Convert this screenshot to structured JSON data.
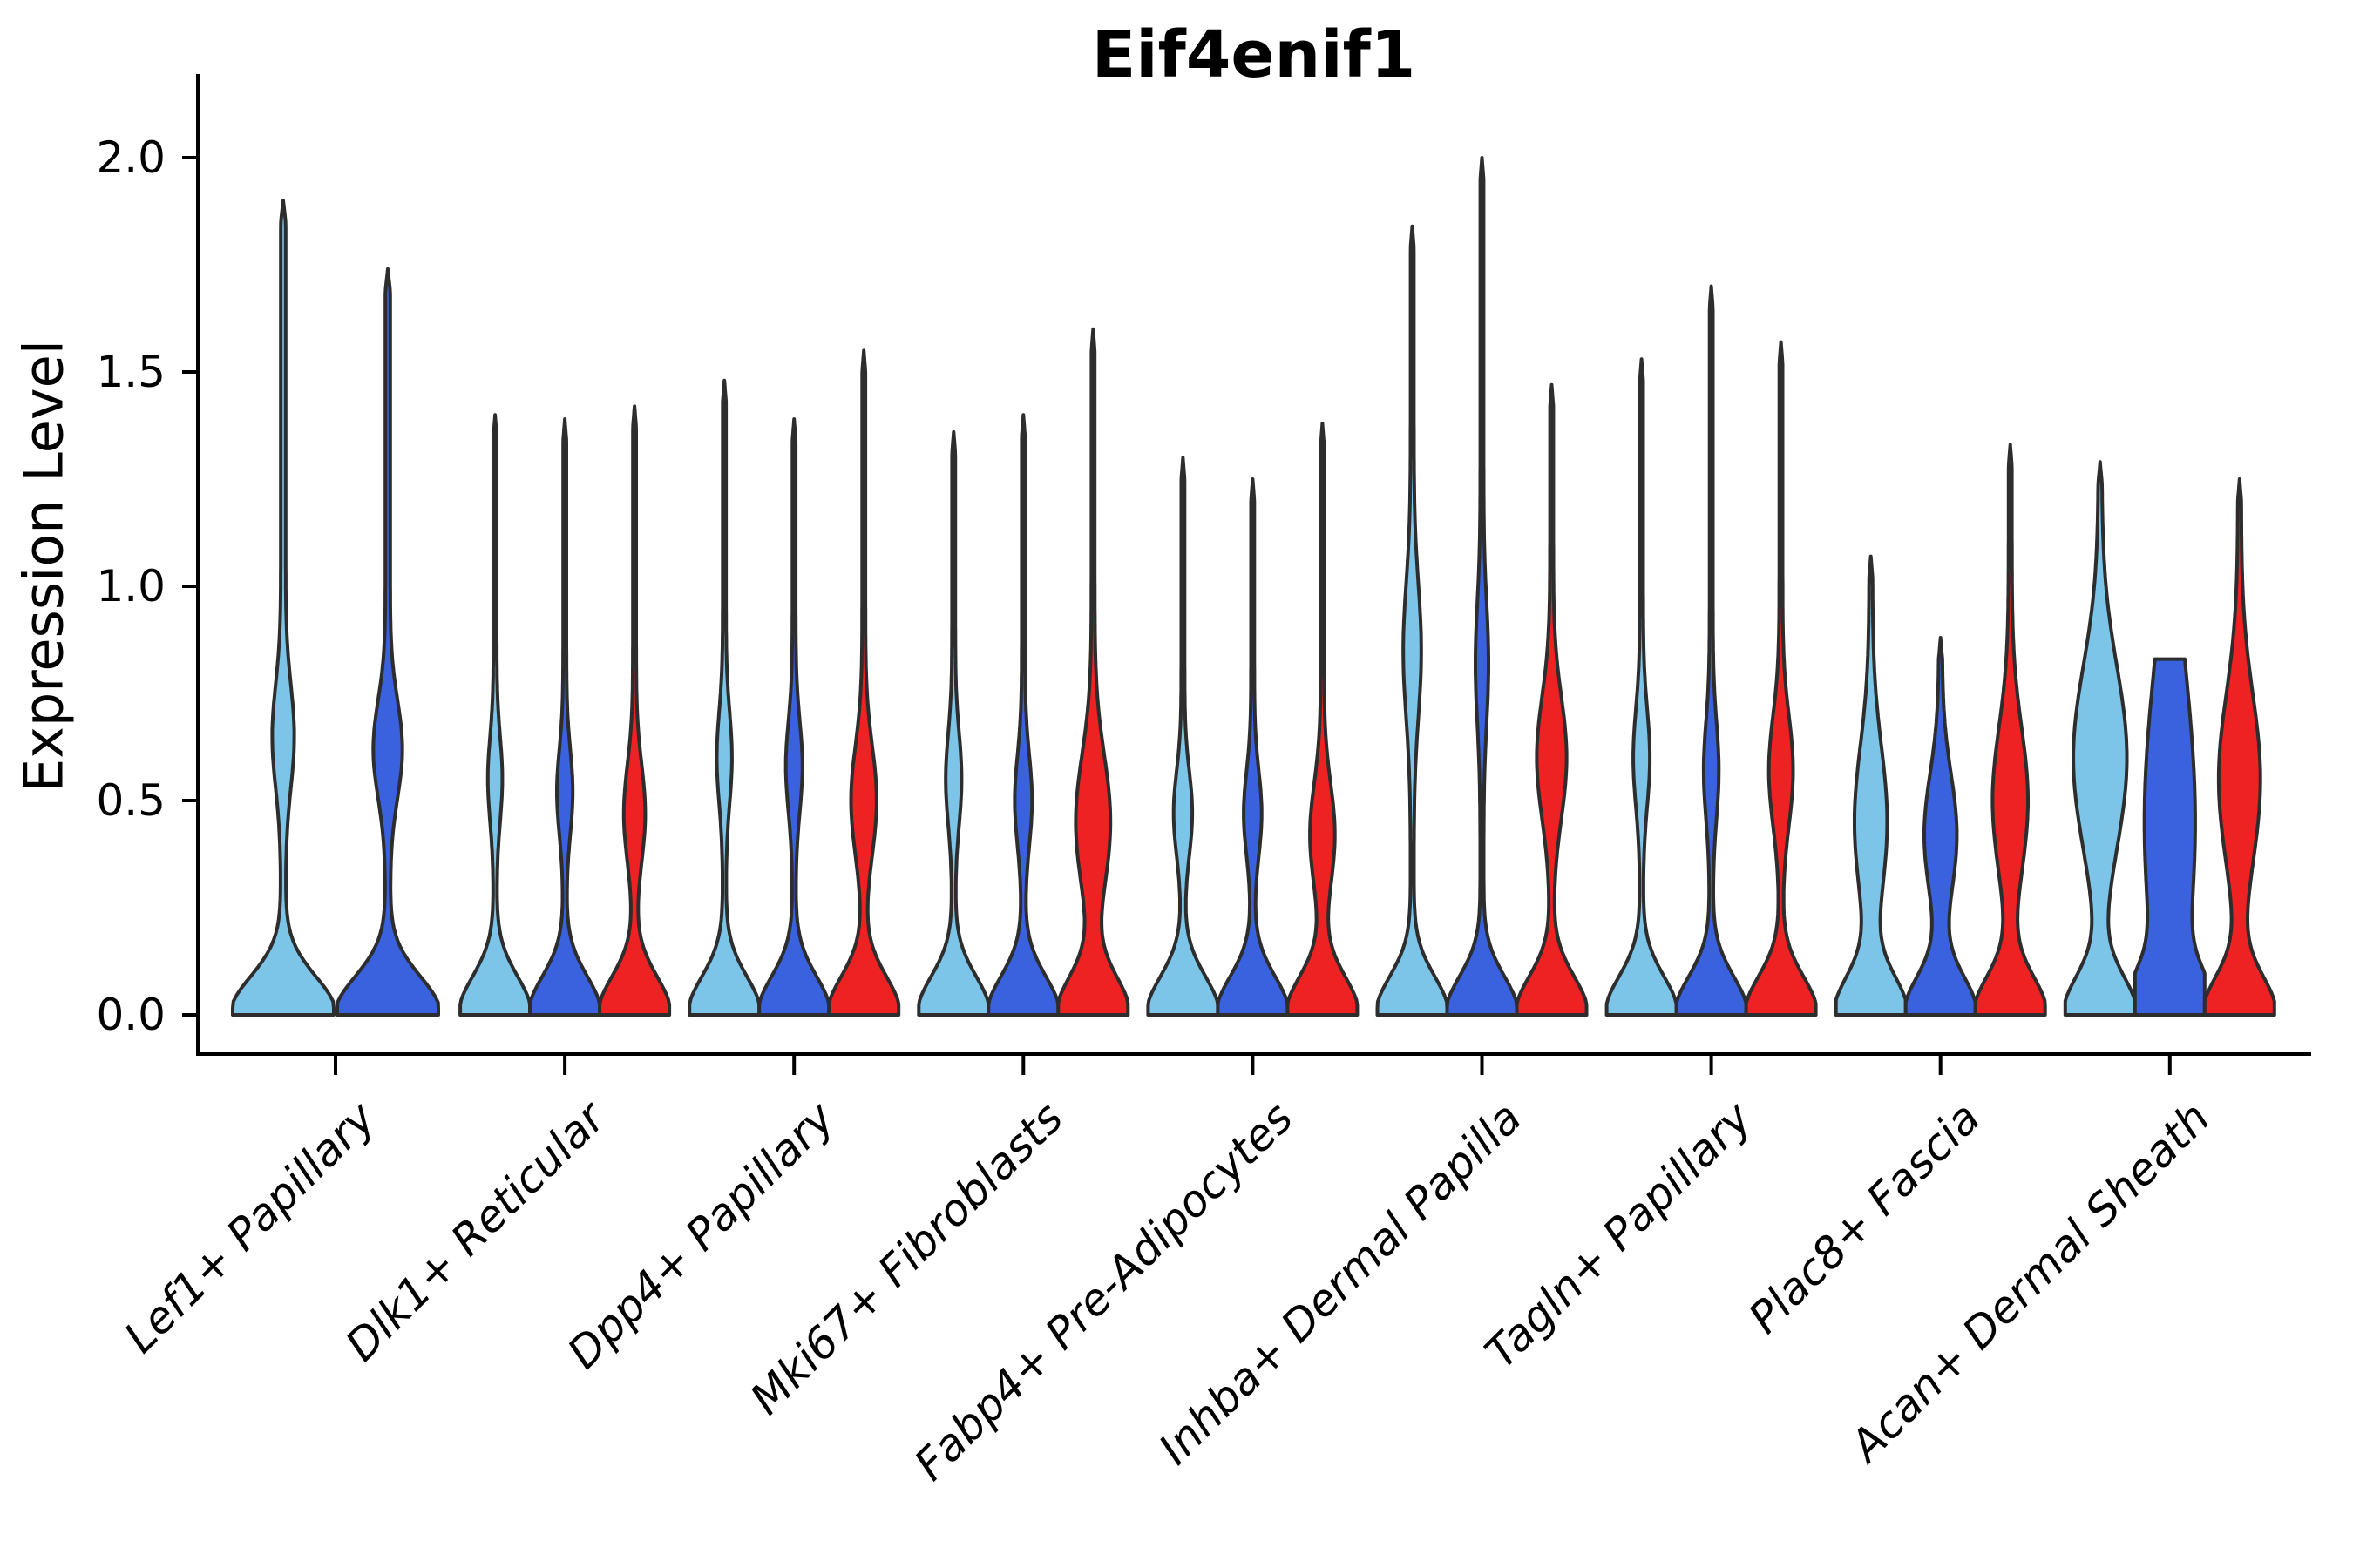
{
  "chart_data": {
    "type": "violin",
    "title": "Eif4enif1",
    "ylabel": "Expression Level",
    "xlabel": "",
    "ylim": [
      0.0,
      2.1
    ],
    "grid": false,
    "legend_position": "none",
    "yticks": [
      {
        "label": "2.0",
        "value": 2.0
      },
      {
        "label": "1.5",
        "value": 1.5
      },
      {
        "label": "1.0",
        "value": 1.0
      },
      {
        "label": "0.5",
        "value": 0.5
      },
      {
        "label": "0.0",
        "value": 0.0
      }
    ],
    "categories": [
      "Lef1+ Papillary",
      "Dlk1+ Reticular",
      "Dpp4+ Papillary",
      "Mki67+ Fibroblasts",
      "Fabp4+ Pre-Adipocytes",
      "Inhba+ Dermal Papilla",
      "Tagln+ Papillary",
      "Plac8+ Fascia",
      "Acan+ Dermal Sheath"
    ],
    "series_colors": {
      "light_blue": "#7DC5E8",
      "dark_blue": "#3A62DF",
      "red": "#EE2123"
    },
    "outline_color": "#2d2d2d",
    "axis_color": "#000000",
    "series": [
      {
        "name": "light_blue",
        "max_values": [
          1.9,
          1.4,
          1.48,
          1.36,
          1.3,
          1.84,
          1.53,
          1.07,
          1.29
        ]
      },
      {
        "name": "dark_blue",
        "max_values": [
          1.74,
          1.39,
          1.39,
          1.4,
          1.25,
          2.0,
          1.7,
          0.88,
          0.83
        ]
      },
      {
        "name": "red",
        "max_values": [
          null,
          1.42,
          1.55,
          1.6,
          1.38,
          1.47,
          1.57,
          1.33,
          1.25
        ]
      }
    ],
    "violins": [
      {
        "category": 0,
        "color": "light_blue",
        "max": 1.9,
        "bump_amp": 0.17,
        "bump_center": 0.65,
        "bump_sigma": 0.17
      },
      {
        "category": 0,
        "color": "dark_blue",
        "max": 1.74,
        "bump_amp": 0.24,
        "bump_center": 0.62,
        "bump_sigma": 0.16
      },
      {
        "category": 1,
        "color": "light_blue",
        "max": 1.4,
        "bump_amp": 0.16,
        "bump_center": 0.55,
        "bump_sigma": 0.14
      },
      {
        "category": 1,
        "color": "dark_blue",
        "max": 1.39,
        "bump_amp": 0.18,
        "bump_center": 0.52,
        "bump_sigma": 0.14
      },
      {
        "category": 1,
        "color": "red",
        "max": 1.42,
        "bump_amp": 0.26,
        "bump_center": 0.47,
        "bump_sigma": 0.16
      },
      {
        "category": 2,
        "color": "light_blue",
        "max": 1.48,
        "bump_amp": 0.17,
        "bump_center": 0.6,
        "bump_sigma": 0.15
      },
      {
        "category": 2,
        "color": "dark_blue",
        "max": 1.39,
        "bump_amp": 0.19,
        "bump_center": 0.58,
        "bump_sigma": 0.15
      },
      {
        "category": 2,
        "color": "red",
        "max": 1.55,
        "bump_amp": 0.32,
        "bump_center": 0.5,
        "bump_sigma": 0.18
      },
      {
        "category": 3,
        "color": "light_blue",
        "max": 1.36,
        "bump_amp": 0.18,
        "bump_center": 0.55,
        "bump_sigma": 0.15
      },
      {
        "category": 3,
        "color": "dark_blue",
        "max": 1.4,
        "bump_amp": 0.2,
        "bump_center": 0.5,
        "bump_sigma": 0.15
      },
      {
        "category": 3,
        "color": "red",
        "max": 1.6,
        "bump_amp": 0.45,
        "bump_center": 0.45,
        "bump_sigma": 0.22
      },
      {
        "category": 4,
        "color": "light_blue",
        "max": 1.3,
        "bump_amp": 0.22,
        "bump_center": 0.47,
        "bump_sigma": 0.14
      },
      {
        "category": 4,
        "color": "dark_blue",
        "max": 1.25,
        "bump_amp": 0.21,
        "bump_center": 0.47,
        "bump_sigma": 0.14
      },
      {
        "category": 4,
        "color": "red",
        "max": 1.38,
        "bump_amp": 0.31,
        "bump_center": 0.42,
        "bump_sigma": 0.17
      },
      {
        "category": 5,
        "color": "light_blue",
        "max": 1.84,
        "bump_amp": 0.21,
        "bump_center": 0.85,
        "bump_sigma": 0.22
      },
      {
        "category": 5,
        "color": "dark_blue",
        "max": 2.0,
        "bump_amp": 0.14,
        "bump_center": 0.82,
        "bump_sigma": 0.2
      },
      {
        "category": 5,
        "color": "red",
        "max": 1.47,
        "bump_amp": 0.38,
        "bump_center": 0.6,
        "bump_sigma": 0.2
      },
      {
        "category": 6,
        "color": "light_blue",
        "max": 1.53,
        "bump_amp": 0.19,
        "bump_center": 0.6,
        "bump_sigma": 0.16
      },
      {
        "category": 6,
        "color": "dark_blue",
        "max": 1.7,
        "bump_amp": 0.17,
        "bump_center": 0.57,
        "bump_sigma": 0.16
      },
      {
        "category": 6,
        "color": "red",
        "max": 1.57,
        "bump_amp": 0.3,
        "bump_center": 0.57,
        "bump_sigma": 0.18
      },
      {
        "category": 7,
        "color": "light_blue",
        "max": 1.07,
        "bump_amp": 0.42,
        "bump_center": 0.45,
        "bump_sigma": 0.25
      },
      {
        "category": 7,
        "color": "dark_blue",
        "max": 0.88,
        "bump_amp": 0.42,
        "bump_center": 0.42,
        "bump_sigma": 0.2
      },
      {
        "category": 7,
        "color": "red",
        "max": 1.33,
        "bump_amp": 0.46,
        "bump_center": 0.5,
        "bump_sigma": 0.24
      },
      {
        "category": 8,
        "color": "light_blue",
        "max": 1.29,
        "bump_amp": 0.72,
        "bump_center": 0.6,
        "bump_sigma": 0.3
      },
      {
        "category": 8,
        "color": "dark_blue",
        "max": 0.83,
        "bump_amp": 0.68,
        "bump_center": 0.45,
        "bump_sigma": 0.5,
        "flat_top": true
      },
      {
        "category": 8,
        "color": "red",
        "max": 1.25,
        "bump_amp": 0.55,
        "bump_center": 0.55,
        "bump_sigma": 0.28
      }
    ]
  }
}
